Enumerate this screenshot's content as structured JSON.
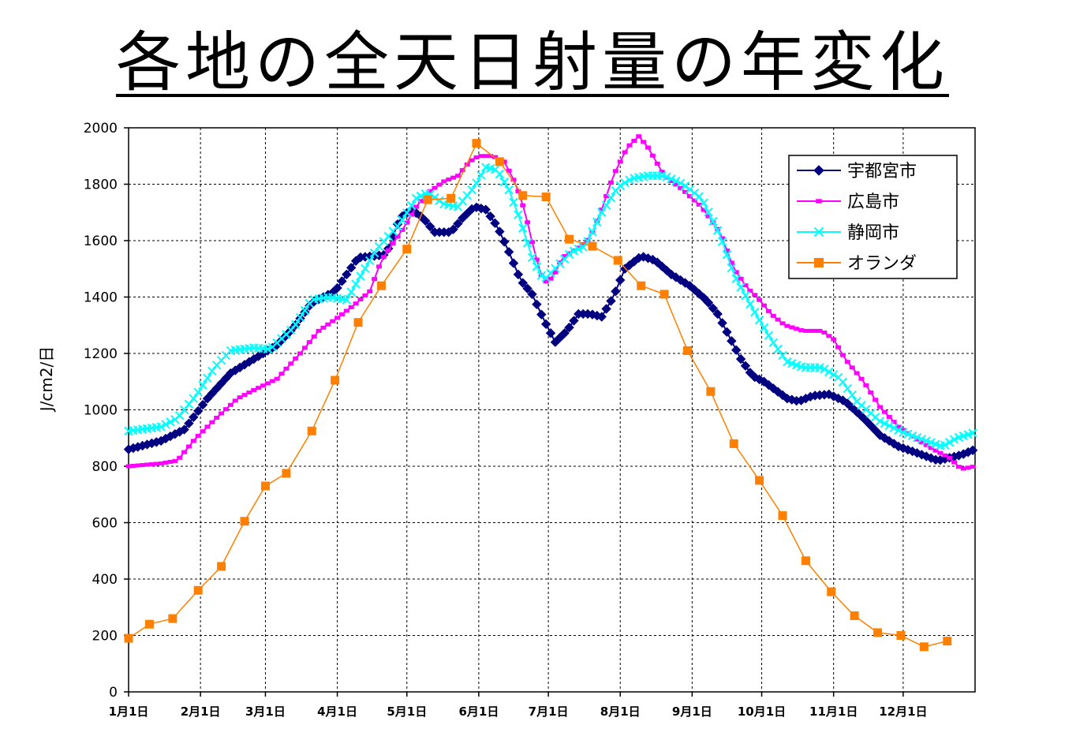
{
  "chart_data": {
    "type": "line",
    "title": "各地の全天日射量の年変化",
    "xlabel": "",
    "ylabel": "J/cm2/日",
    "ylim": [
      0,
      2000
    ],
    "y_ticks": [
      0,
      200,
      400,
      600,
      800,
      1000,
      1200,
      1400,
      1600,
      1800,
      2000
    ],
    "x_ticks": [
      "1月1日",
      "2月1日",
      "3月1日",
      "4月1日",
      "5月1日",
      "6月1日",
      "7月1日",
      "8月1日",
      "9月1日",
      "10月1日",
      "11月1日",
      "12月1日"
    ],
    "x_unit": "day-of-year",
    "xlim": [
      1,
      366
    ],
    "x_tick_days": [
      1,
      32,
      60,
      91,
      121,
      152,
      182,
      213,
      244,
      274,
      305,
      335
    ],
    "grid": true,
    "legend_position": "top-right",
    "series": [
      {
        "name": "宇都宮市",
        "color": "#000080",
        "marker": "diamond",
        "points": [
          [
            1,
            860
          ],
          [
            15,
            890
          ],
          [
            25,
            930
          ],
          [
            35,
            1040
          ],
          [
            45,
            1130
          ],
          [
            55,
            1180
          ],
          [
            65,
            1230
          ],
          [
            72,
            1290
          ],
          [
            80,
            1380
          ],
          [
            90,
            1420
          ],
          [
            95,
            1480
          ],
          [
            100,
            1540
          ],
          [
            112,
            1550
          ],
          [
            118,
            1680
          ],
          [
            123,
            1710
          ],
          [
            128,
            1680
          ],
          [
            133,
            1630
          ],
          [
            140,
            1630
          ],
          [
            145,
            1680
          ],
          [
            150,
            1720
          ],
          [
            155,
            1710
          ],
          [
            160,
            1650
          ],
          [
            165,
            1560
          ],
          [
            170,
            1460
          ],
          [
            175,
            1410
          ],
          [
            180,
            1320
          ],
          [
            185,
            1240
          ],
          [
            190,
            1280
          ],
          [
            195,
            1340
          ],
          [
            200,
            1340
          ],
          [
            205,
            1330
          ],
          [
            210,
            1400
          ],
          [
            215,
            1500
          ],
          [
            222,
            1545
          ],
          [
            228,
            1530
          ],
          [
            235,
            1480
          ],
          [
            243,
            1440
          ],
          [
            250,
            1390
          ],
          [
            255,
            1340
          ],
          [
            260,
            1260
          ],
          [
            265,
            1180
          ],
          [
            270,
            1120
          ],
          [
            275,
            1100
          ],
          [
            280,
            1070
          ],
          [
            285,
            1040
          ],
          [
            290,
            1030
          ],
          [
            296,
            1050
          ],
          [
            303,
            1055
          ],
          [
            310,
            1030
          ],
          [
            318,
            970
          ],
          [
            325,
            910
          ],
          [
            333,
            870
          ],
          [
            340,
            850
          ],
          [
            350,
            820
          ],
          [
            360,
            840
          ],
          [
            366,
            860
          ]
        ]
      },
      {
        "name": "広島市",
        "color": "#ff00ff",
        "marker": "dash",
        "points": [
          [
            1,
            800
          ],
          [
            15,
            810
          ],
          [
            22,
            820
          ],
          [
            30,
            900
          ],
          [
            40,
            980
          ],
          [
            48,
            1040
          ],
          [
            55,
            1070
          ],
          [
            65,
            1110
          ],
          [
            75,
            1200
          ],
          [
            83,
            1280
          ],
          [
            90,
            1320
          ],
          [
            98,
            1370
          ],
          [
            105,
            1420
          ],
          [
            110,
            1530
          ],
          [
            120,
            1650
          ],
          [
            125,
            1720
          ],
          [
            130,
            1770
          ],
          [
            137,
            1810
          ],
          [
            143,
            1830
          ],
          [
            148,
            1880
          ],
          [
            152,
            1900
          ],
          [
            158,
            1900
          ],
          [
            163,
            1880
          ],
          [
            168,
            1800
          ],
          [
            172,
            1700
          ],
          [
            176,
            1560
          ],
          [
            180,
            1450
          ],
          [
            184,
            1470
          ],
          [
            188,
            1540
          ],
          [
            196,
            1580
          ],
          [
            200,
            1610
          ],
          [
            205,
            1710
          ],
          [
            210,
            1830
          ],
          [
            216,
            1930
          ],
          [
            221,
            1970
          ],
          [
            225,
            1930
          ],
          [
            232,
            1830
          ],
          [
            240,
            1780
          ],
          [
            248,
            1720
          ],
          [
            256,
            1630
          ],
          [
            262,
            1500
          ],
          [
            268,
            1430
          ],
          [
            272,
            1400
          ],
          [
            278,
            1340
          ],
          [
            284,
            1300
          ],
          [
            292,
            1280
          ],
          [
            300,
            1280
          ],
          [
            305,
            1250
          ],
          [
            310,
            1180
          ],
          [
            318,
            1100
          ],
          [
            325,
            1010
          ],
          [
            333,
            940
          ],
          [
            340,
            900
          ],
          [
            348,
            860
          ],
          [
            355,
            830
          ],
          [
            360,
            790
          ],
          [
            366,
            800
          ]
        ]
      },
      {
        "name": "静岡市",
        "color": "#00ffff",
        "marker": "x",
        "points": [
          [
            1,
            925
          ],
          [
            15,
            940
          ],
          [
            22,
            970
          ],
          [
            30,
            1050
          ],
          [
            38,
            1150
          ],
          [
            45,
            1210
          ],
          [
            55,
            1220
          ],
          [
            62,
            1215
          ],
          [
            72,
            1290
          ],
          [
            80,
            1390
          ],
          [
            88,
            1400
          ],
          [
            95,
            1390
          ],
          [
            100,
            1460
          ],
          [
            108,
            1570
          ],
          [
            118,
            1660
          ],
          [
            125,
            1750
          ],
          [
            130,
            1770
          ],
          [
            137,
            1730
          ],
          [
            143,
            1720
          ],
          [
            150,
            1790
          ],
          [
            155,
            1860
          ],
          [
            160,
            1850
          ],
          [
            165,
            1780
          ],
          [
            170,
            1670
          ],
          [
            175,
            1540
          ],
          [
            180,
            1460
          ],
          [
            186,
            1510
          ],
          [
            192,
            1560
          ],
          [
            198,
            1580
          ],
          [
            205,
            1700
          ],
          [
            212,
            1790
          ],
          [
            218,
            1820
          ],
          [
            225,
            1830
          ],
          [
            232,
            1830
          ],
          [
            240,
            1800
          ],
          [
            248,
            1750
          ],
          [
            256,
            1620
          ],
          [
            262,
            1480
          ],
          [
            270,
            1360
          ],
          [
            278,
            1250
          ],
          [
            285,
            1170
          ],
          [
            292,
            1150
          ],
          [
            300,
            1150
          ],
          [
            308,
            1110
          ],
          [
            315,
            1030
          ],
          [
            325,
            960
          ],
          [
            335,
            920
          ],
          [
            345,
            890
          ],
          [
            352,
            870
          ],
          [
            358,
            900
          ],
          [
            366,
            920
          ]
        ]
      },
      {
        "name": "オランダ",
        "color": "#ff8000",
        "marker": "square",
        "points": [
          [
            1,
            190
          ],
          [
            10,
            240
          ],
          [
            20,
            260
          ],
          [
            31,
            360
          ],
          [
            41,
            445
          ],
          [
            51,
            605
          ],
          [
            60,
            730
          ],
          [
            69,
            775
          ],
          [
            80,
            925
          ],
          [
            90,
            1105
          ],
          [
            100,
            1310
          ],
          [
            110,
            1440
          ],
          [
            121,
            1570
          ],
          [
            130,
            1745
          ],
          [
            140,
            1750
          ],
          [
            151,
            1945
          ],
          [
            161,
            1880
          ],
          [
            171,
            1760
          ],
          [
            181,
            1755
          ],
          [
            191,
            1605
          ],
          [
            201,
            1580
          ],
          [
            212,
            1530
          ],
          [
            222,
            1440
          ],
          [
            232,
            1410
          ],
          [
            242,
            1210
          ],
          [
            252,
            1065
          ],
          [
            262,
            880
          ],
          [
            273,
            750
          ],
          [
            283,
            625
          ],
          [
            293,
            465
          ],
          [
            304,
            355
          ],
          [
            314,
            270
          ],
          [
            324,
            210
          ],
          [
            334,
            200
          ],
          [
            344,
            160
          ],
          [
            354,
            180
          ]
        ]
      }
    ]
  }
}
